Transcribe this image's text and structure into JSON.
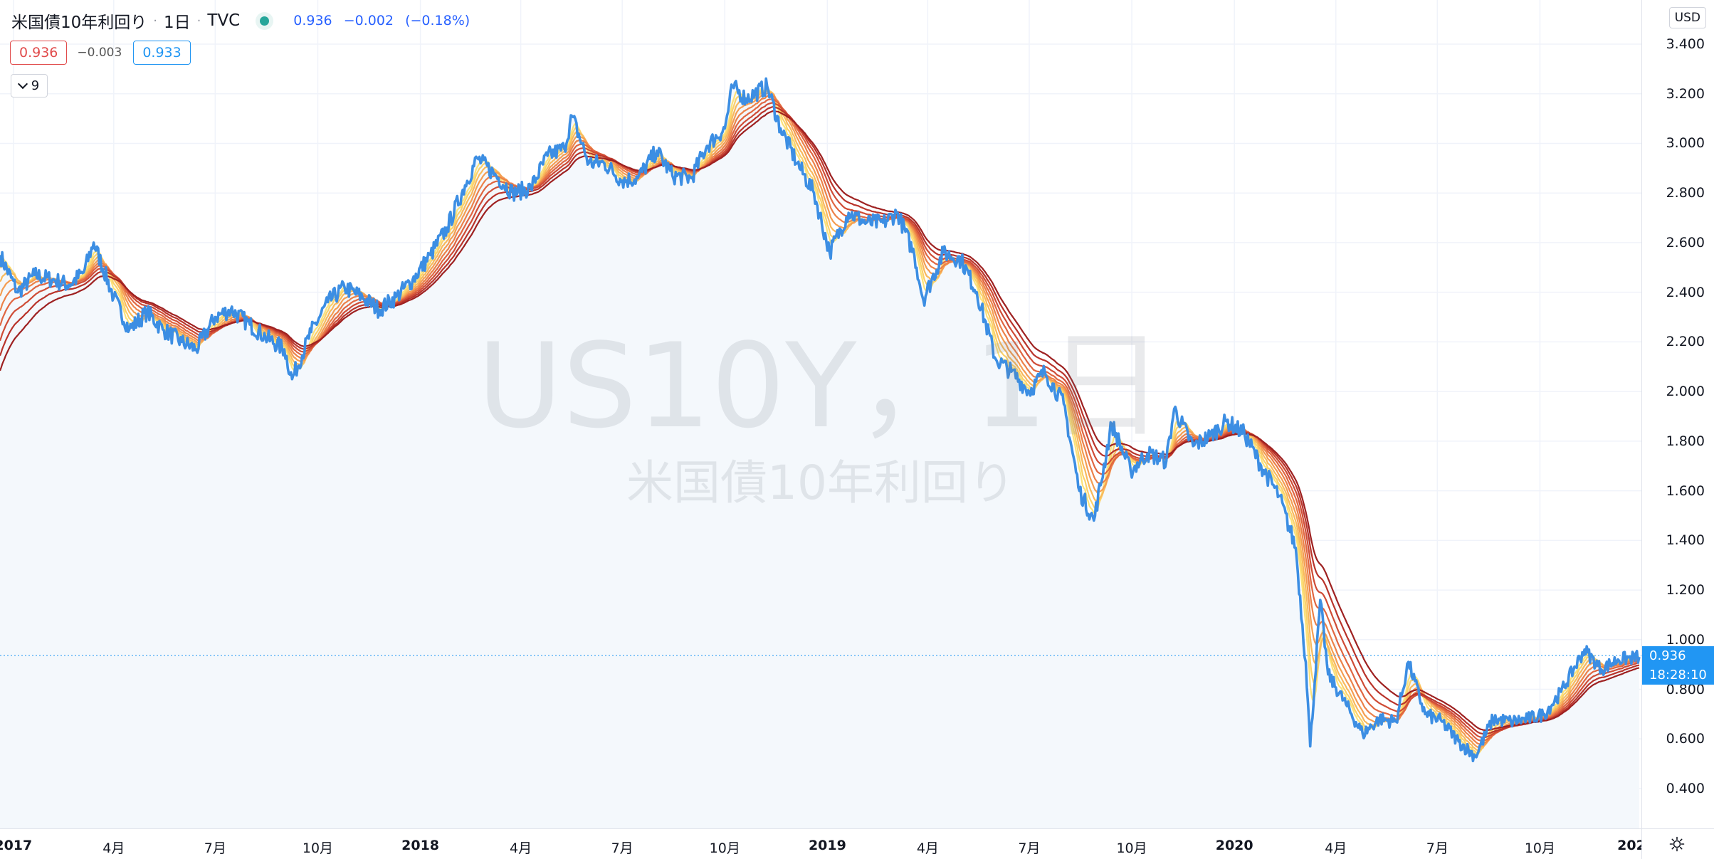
{
  "legend": {
    "symbol_name": "米国債10年利回り",
    "interval": "1日",
    "source": "TVC",
    "last": "0.936",
    "change": "−0.002",
    "change_pct": "(−0.18%)",
    "sep": "·"
  },
  "badges": {
    "bid": "0.936",
    "spread": "−0.003",
    "ask": "0.933"
  },
  "collapse_button": {
    "count": "9"
  },
  "watermark": {
    "line1": "US10Y，1日",
    "line2": "米国債10年利回り"
  },
  "price_axis": {
    "currency": "USD",
    "ticks": [
      "3.400",
      "3.200",
      "3.000",
      "2.800",
      "2.600",
      "2.400",
      "2.200",
      "2.000",
      "1.800",
      "1.600",
      "1.400",
      "1.200",
      "1.000",
      "0.800",
      "0.600",
      "0.400"
    ],
    "last_price_tag": "0.936",
    "countdown_tag": "18:28:10"
  },
  "time_axis": {
    "labels": [
      {
        "text": "2017",
        "date": "2017-01-01",
        "year": true
      },
      {
        "text": "4月",
        "date": "2017-04-01",
        "year": false
      },
      {
        "text": "7月",
        "date": "2017-07-01",
        "year": false
      },
      {
        "text": "10月",
        "date": "2017-10-01",
        "year": false
      },
      {
        "text": "2018",
        "date": "2018-01-01",
        "year": true
      },
      {
        "text": "4月",
        "date": "2018-04-01",
        "year": false
      },
      {
        "text": "7月",
        "date": "2018-07-01",
        "year": false
      },
      {
        "text": "10月",
        "date": "2018-10-01",
        "year": false
      },
      {
        "text": "2019",
        "date": "2019-01-01",
        "year": true
      },
      {
        "text": "4月",
        "date": "2019-04-01",
        "year": false
      },
      {
        "text": "7月",
        "date": "2019-07-01",
        "year": false
      },
      {
        "text": "10月",
        "date": "2019-10-01",
        "year": false
      },
      {
        "text": "2020",
        "date": "2020-01-01",
        "year": true
      },
      {
        "text": "4月",
        "date": "2020-04-01",
        "year": false
      },
      {
        "text": "7月",
        "date": "2020-07-01",
        "year": false
      },
      {
        "text": "10月",
        "date": "2020-10-01",
        "year": false
      },
      {
        "text": "202",
        "date": "2021-01-01",
        "year": true
      }
    ]
  },
  "chart_data": {
    "type": "line",
    "title": "米国債10年利回り",
    "ylim": [
      0.3,
      3.45
    ],
    "x_range": [
      "2016-12-20",
      "2020-12-31"
    ],
    "grid": true,
    "series": [
      {
        "name": "US10Y",
        "color": "#3c8ee3",
        "x": [
          "2016-12-20",
          "2017-01-05",
          "2017-01-20",
          "2017-02-05",
          "2017-02-20",
          "2017-03-05",
          "2017-03-14",
          "2017-04-01",
          "2017-04-15",
          "2017-05-01",
          "2017-05-15",
          "2017-06-01",
          "2017-06-14",
          "2017-07-01",
          "2017-07-15",
          "2017-08-01",
          "2017-08-15",
          "2017-09-01",
          "2017-09-08",
          "2017-09-25",
          "2017-10-10",
          "2017-10-25",
          "2017-11-10",
          "2017-11-25",
          "2017-12-10",
          "2017-12-25",
          "2018-01-10",
          "2018-01-25",
          "2018-02-10",
          "2018-02-21",
          "2018-03-10",
          "2018-03-25",
          "2018-04-10",
          "2018-04-25",
          "2018-05-10",
          "2018-05-17",
          "2018-06-01",
          "2018-06-15",
          "2018-07-01",
          "2018-07-15",
          "2018-08-01",
          "2018-08-15",
          "2018-09-01",
          "2018-09-15",
          "2018-10-01",
          "2018-10-08",
          "2018-10-20",
          "2018-11-08",
          "2018-11-20",
          "2018-12-05",
          "2018-12-20",
          "2019-01-03",
          "2019-01-20",
          "2019-02-05",
          "2019-02-20",
          "2019-03-05",
          "2019-03-20",
          "2019-03-28",
          "2019-04-15",
          "2019-05-01",
          "2019-05-15",
          "2019-06-01",
          "2019-06-15",
          "2019-07-01",
          "2019-07-15",
          "2019-08-01",
          "2019-08-15",
          "2019-08-28",
          "2019-09-13",
          "2019-09-30",
          "2019-10-15",
          "2019-11-01",
          "2019-11-08",
          "2019-11-25",
          "2019-12-10",
          "2019-12-25",
          "2020-01-10",
          "2020-01-25",
          "2020-02-10",
          "2020-02-25",
          "2020-03-05",
          "2020-03-09",
          "2020-03-18",
          "2020-03-25",
          "2020-04-10",
          "2020-04-25",
          "2020-05-10",
          "2020-05-25",
          "2020-06-05",
          "2020-06-20",
          "2020-07-05",
          "2020-07-20",
          "2020-08-04",
          "2020-08-20",
          "2020-09-05",
          "2020-09-20",
          "2020-10-05",
          "2020-10-20",
          "2020-11-10",
          "2020-11-25",
          "2020-12-10",
          "2020-12-29"
        ],
        "values": [
          2.55,
          2.4,
          2.47,
          2.45,
          2.43,
          2.48,
          2.6,
          2.38,
          2.25,
          2.32,
          2.25,
          2.2,
          2.17,
          2.3,
          2.33,
          2.27,
          2.22,
          2.17,
          2.05,
          2.24,
          2.36,
          2.42,
          2.38,
          2.33,
          2.38,
          2.45,
          2.55,
          2.66,
          2.83,
          2.94,
          2.87,
          2.8,
          2.82,
          2.95,
          2.98,
          3.11,
          2.92,
          2.92,
          2.85,
          2.86,
          2.97,
          2.87,
          2.86,
          2.99,
          3.06,
          3.23,
          3.18,
          3.23,
          3.06,
          2.92,
          2.8,
          2.56,
          2.72,
          2.68,
          2.68,
          2.72,
          2.55,
          2.37,
          2.56,
          2.53,
          2.4,
          2.13,
          2.08,
          2.0,
          2.08,
          1.95,
          1.6,
          1.48,
          1.87,
          1.68,
          1.75,
          1.72,
          1.93,
          1.78,
          1.82,
          1.88,
          1.83,
          1.7,
          1.58,
          1.37,
          0.91,
          0.57,
          1.16,
          0.86,
          0.74,
          0.62,
          0.68,
          0.67,
          0.91,
          0.7,
          0.67,
          0.59,
          0.53,
          0.68,
          0.67,
          0.68,
          0.7,
          0.79,
          0.96,
          0.88,
          0.92,
          0.93
        ]
      }
    ]
  }
}
